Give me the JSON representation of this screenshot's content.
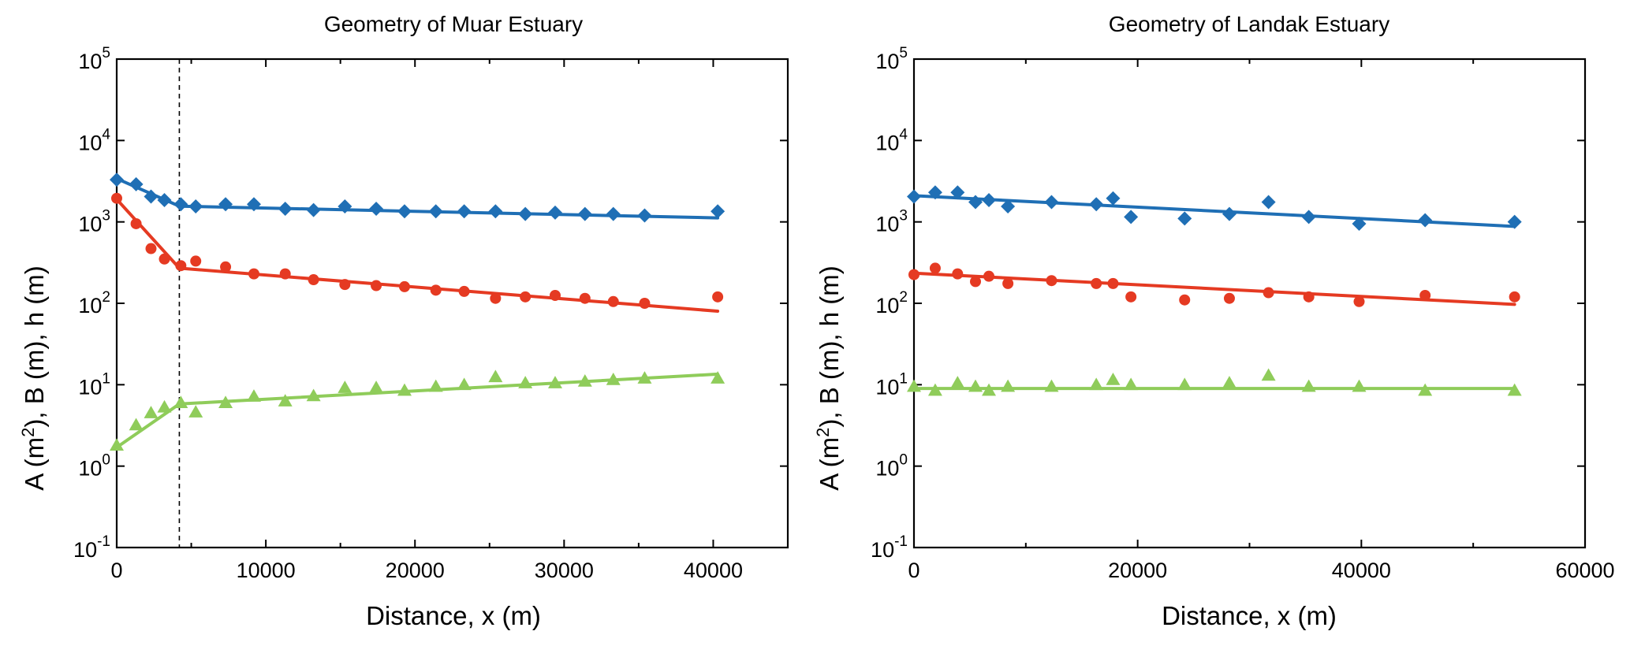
{
  "colors": {
    "A": "#1f6fb5",
    "B": "#e53a22",
    "h": "#8fcc5a",
    "axis": "#000000"
  },
  "chart_data": [
    {
      "type": "scatter",
      "title": "Geometry of Muar Estuary",
      "xlabel": "Distance, x (m)",
      "ylabel": {
        "p1": "A (m",
        "sup": "2",
        "p2": "), B (m), h (m)"
      },
      "xlim": [
        0,
        45000
      ],
      "ylog": true,
      "ylim": [
        0.1,
        100000
      ],
      "xticks": [
        0,
        10000,
        20000,
        30000,
        40000
      ],
      "xtick_labels": [
        "0",
        "10000",
        "20000",
        "30000",
        "40000"
      ],
      "yticks": [
        {
          "value": 100000,
          "base": "10",
          "exp": "5"
        },
        {
          "value": 10000,
          "base": "10",
          "exp": "4"
        },
        {
          "value": 1000,
          "base": "10",
          "exp": "3"
        },
        {
          "value": 100,
          "base": "10",
          "exp": "2"
        },
        {
          "value": 10,
          "base": "10",
          "exp": "1"
        },
        {
          "value": 1,
          "base": "10",
          "exp": "0"
        },
        {
          "value": 0.1,
          "base": "10",
          "exp": "-1"
        }
      ],
      "reference_line_x": 4200,
      "series": [
        {
          "name": "A",
          "color_key": "A",
          "marker": "diamond",
          "points": [
            [
              0,
              3300
            ],
            [
              1300,
              2900
            ],
            [
              2300,
              2050
            ],
            [
              3200,
              1850
            ],
            [
              4300,
              1650
            ],
            [
              5300,
              1550
            ],
            [
              7300,
              1650
            ],
            [
              9200,
              1650
            ],
            [
              11300,
              1450
            ],
            [
              13200,
              1400
            ],
            [
              15300,
              1550
            ],
            [
              17400,
              1450
            ],
            [
              19300,
              1350
            ],
            [
              21400,
              1350
            ],
            [
              23300,
              1350
            ],
            [
              25400,
              1350
            ],
            [
              27400,
              1250
            ],
            [
              29400,
              1300
            ],
            [
              31400,
              1250
            ],
            [
              33300,
              1250
            ],
            [
              35400,
              1200
            ],
            [
              40300,
              1350
            ]
          ],
          "fit": [
            [
              0,
              3400
            ],
            [
              4200,
              1560
            ],
            [
              40300,
              1120
            ]
          ]
        },
        {
          "name": "B",
          "color_key": "B",
          "marker": "circle",
          "points": [
            [
              0,
              1950
            ],
            [
              1300,
              950
            ],
            [
              2300,
              470
            ],
            [
              3200,
              350
            ],
            [
              4300,
              290
            ],
            [
              5300,
              330
            ],
            [
              7300,
              280
            ],
            [
              9200,
              230
            ],
            [
              11300,
              230
            ],
            [
              13200,
              195
            ],
            [
              15300,
              170
            ],
            [
              17400,
              165
            ],
            [
              19300,
              160
            ],
            [
              21400,
              145
            ],
            [
              23300,
              140
            ],
            [
              25400,
              115
            ],
            [
              27400,
              120
            ],
            [
              29400,
              125
            ],
            [
              31400,
              115
            ],
            [
              33300,
              105
            ],
            [
              35400,
              100
            ],
            [
              40300,
              120
            ]
          ],
          "fit": [
            [
              0,
              1900
            ],
            [
              4200,
              270
            ],
            [
              40300,
              80
            ]
          ]
        },
        {
          "name": "h",
          "color_key": "h",
          "marker": "triangle",
          "points": [
            [
              0,
              1.8
            ],
            [
              1300,
              3.2
            ],
            [
              2300,
              4.5
            ],
            [
              3200,
              5.3
            ],
            [
              4300,
              6.0
            ],
            [
              5300,
              4.6
            ],
            [
              7300,
              6.0
            ],
            [
              9200,
              7.2
            ],
            [
              11300,
              6.3
            ],
            [
              13200,
              7.3
            ],
            [
              15300,
              9.2
            ],
            [
              17400,
              9.2
            ],
            [
              19300,
              8.5
            ],
            [
              21400,
              9.5
            ],
            [
              23300,
              10.0
            ],
            [
              25400,
              12.5
            ],
            [
              27400,
              10.5
            ],
            [
              29400,
              10.5
            ],
            [
              31400,
              11.0
            ],
            [
              33300,
              11.5
            ],
            [
              35400,
              12.0
            ],
            [
              40300,
              12.0
            ]
          ],
          "fit": [
            [
              0,
              1.7
            ],
            [
              4200,
              5.8
            ],
            [
              40300,
              13.5
            ]
          ]
        }
      ]
    },
    {
      "type": "scatter",
      "title": "Geometry of Landak Estuary",
      "xlabel": "Distance, x (m)",
      "ylabel": {
        "p1": "A (m",
        "sup": "2",
        "p2": "), B (m), h (m)"
      },
      "xlim": [
        0,
        60000
      ],
      "ylog": true,
      "ylim": [
        0.1,
        100000
      ],
      "xticks": [
        0,
        20000,
        40000,
        60000
      ],
      "xtick_labels": [
        "0",
        "20000",
        "40000",
        "60000"
      ],
      "yticks": [
        {
          "value": 100000,
          "base": "10",
          "exp": "5"
        },
        {
          "value": 10000,
          "base": "10",
          "exp": "4"
        },
        {
          "value": 1000,
          "base": "10",
          "exp": "3"
        },
        {
          "value": 100,
          "base": "10",
          "exp": "2"
        },
        {
          "value": 10,
          "base": "10",
          "exp": "1"
        },
        {
          "value": 1,
          "base": "10",
          "exp": "0"
        },
        {
          "value": 0.1,
          "base": "10",
          "exp": "-1"
        }
      ],
      "series": [
        {
          "name": "A",
          "color_key": "A",
          "marker": "diamond",
          "points": [
            [
              0,
              2050
            ],
            [
              1900,
              2300
            ],
            [
              3900,
              2300
            ],
            [
              5500,
              1750
            ],
            [
              6700,
              1850
            ],
            [
              8400,
              1550
            ],
            [
              12300,
              1750
            ],
            [
              16300,
              1650
            ],
            [
              17800,
              1950
            ],
            [
              19400,
              1150
            ],
            [
              24200,
              1100
            ],
            [
              28200,
              1250
            ],
            [
              31700,
              1750
            ],
            [
              35300,
              1150
            ],
            [
              39800,
              950
            ],
            [
              45700,
              1050
            ],
            [
              53700,
              1000
            ]
          ],
          "fit": [
            [
              0,
              2100
            ],
            [
              53700,
              880
            ]
          ]
        },
        {
          "name": "B",
          "color_key": "B",
          "marker": "circle",
          "points": [
            [
              0,
              225
            ],
            [
              1900,
              270
            ],
            [
              3900,
              230
            ],
            [
              5500,
              185
            ],
            [
              6700,
              215
            ],
            [
              8400,
              175
            ],
            [
              12300,
              190
            ],
            [
              16300,
              175
            ],
            [
              17800,
              175
            ],
            [
              19400,
              120
            ],
            [
              24200,
              110
            ],
            [
              28200,
              115
            ],
            [
              31700,
              135
            ],
            [
              35300,
              120
            ],
            [
              39800,
              105
            ],
            [
              45700,
              125
            ],
            [
              53700,
              120
            ]
          ],
          "fit": [
            [
              0,
              235
            ],
            [
              53700,
              97
            ]
          ]
        },
        {
          "name": "h",
          "color_key": "h",
          "marker": "triangle",
          "points": [
            [
              0,
              9.5
            ],
            [
              1900,
              8.5
            ],
            [
              3900,
              10.5
            ],
            [
              5500,
              9.5
            ],
            [
              6700,
              8.5
            ],
            [
              8400,
              9.5
            ],
            [
              12300,
              9.5
            ],
            [
              16300,
              10.0
            ],
            [
              17800,
              11.5
            ],
            [
              19400,
              10.0
            ],
            [
              24200,
              10.0
            ],
            [
              28200,
              10.5
            ],
            [
              31700,
              13.0
            ],
            [
              35300,
              9.5
            ],
            [
              39800,
              9.5
            ],
            [
              45700,
              8.5
            ],
            [
              53700,
              8.5
            ]
          ],
          "fit": [
            [
              0,
              9.0
            ],
            [
              53700,
              9.0
            ]
          ]
        }
      ]
    }
  ]
}
